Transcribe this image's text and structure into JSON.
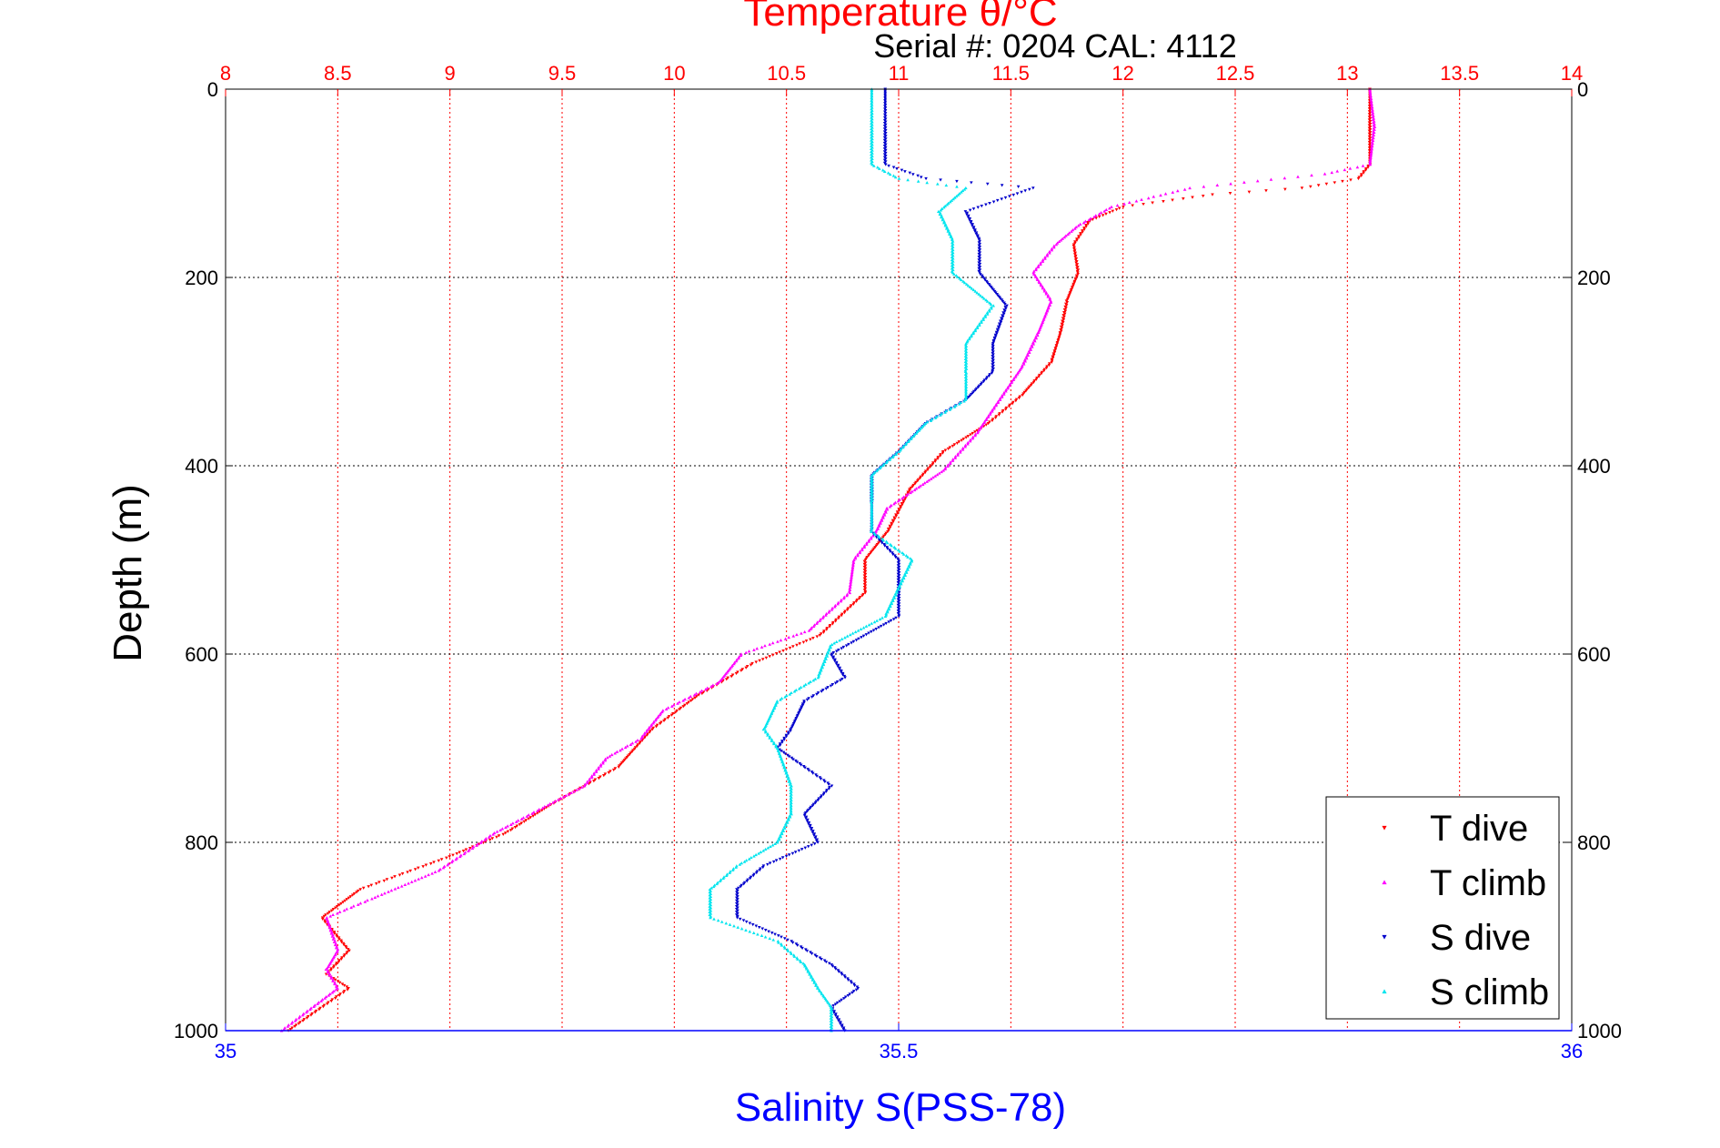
{
  "chart_data": {
    "type": "scatter",
    "title": "Temperature θ/°C",
    "subtitle": "Serial #: 0204  CAL: 4112",
    "ylabel": "Depth (m)",
    "xlabel_bottom": "Salinity S(PSS-78)",
    "ylim": [
      1000,
      0
    ],
    "y_ticks": [
      "0",
      "200",
      "400",
      "600",
      "800",
      "1000"
    ],
    "temperature_axis": {
      "range": [
        8,
        14
      ],
      "ticks": [
        "8",
        "8.5",
        "9",
        "9.5",
        "10",
        "10.5",
        "11",
        "11.5",
        "12",
        "12.5",
        "13",
        "13.5",
        "14"
      ]
    },
    "salinity_axis": {
      "range": [
        35,
        36
      ],
      "ticks": [
        "35",
        "35.5",
        "36"
      ]
    },
    "grid": true,
    "legend_position": "bottom-right",
    "colors": {
      "temperature_axis": "#ff0000",
      "salinity_axis": "#0000ff",
      "grid_temperature": "#ff0000",
      "grid_depth": "#000000"
    },
    "series": [
      {
        "name": "T dive",
        "axis": "temperature",
        "color": "#ff0000",
        "marker": "triangle-down",
        "points": [
          [
            13.1,
            0
          ],
          [
            13.1,
            40
          ],
          [
            13.1,
            80
          ],
          [
            13.05,
            95
          ],
          [
            12.8,
            105
          ],
          [
            12.4,
            112
          ],
          [
            12.0,
            125
          ],
          [
            11.85,
            140
          ],
          [
            11.78,
            165
          ],
          [
            11.8,
            195
          ],
          [
            11.75,
            225
          ],
          [
            11.72,
            260
          ],
          [
            11.68,
            290
          ],
          [
            11.55,
            325
          ],
          [
            11.4,
            355
          ],
          [
            11.2,
            385
          ],
          [
            11.05,
            425
          ],
          [
            10.95,
            470
          ],
          [
            10.85,
            500
          ],
          [
            10.85,
            535
          ],
          [
            10.65,
            580
          ],
          [
            10.35,
            610
          ],
          [
            10.1,
            645
          ],
          [
            9.9,
            680
          ],
          [
            9.75,
            720
          ],
          [
            9.45,
            760
          ],
          [
            9.25,
            790
          ],
          [
            9.0,
            815
          ],
          [
            8.6,
            850
          ],
          [
            8.43,
            880
          ],
          [
            8.55,
            915
          ],
          [
            8.45,
            940
          ],
          [
            8.55,
            955
          ],
          [
            8.28,
            1000
          ]
        ]
      },
      {
        "name": "T climb",
        "axis": "temperature",
        "color": "#ff00ff",
        "marker": "triangle-up",
        "points": [
          [
            13.1,
            0
          ],
          [
            13.12,
            40
          ],
          [
            13.1,
            80
          ],
          [
            12.9,
            90
          ],
          [
            12.3,
            105
          ],
          [
            11.95,
            125
          ],
          [
            11.8,
            145
          ],
          [
            11.7,
            165
          ],
          [
            11.6,
            195
          ],
          [
            11.68,
            225
          ],
          [
            11.62,
            260
          ],
          [
            11.55,
            295
          ],
          [
            11.45,
            330
          ],
          [
            11.35,
            365
          ],
          [
            11.2,
            405
          ],
          [
            10.95,
            445
          ],
          [
            10.9,
            470
          ],
          [
            10.8,
            500
          ],
          [
            10.78,
            535
          ],
          [
            10.6,
            575
          ],
          [
            10.3,
            600
          ],
          [
            10.2,
            630
          ],
          [
            9.95,
            660
          ],
          [
            9.85,
            690
          ],
          [
            9.7,
            710
          ],
          [
            9.6,
            740
          ],
          [
            9.4,
            765
          ],
          [
            9.2,
            790
          ],
          [
            8.95,
            830
          ],
          [
            8.65,
            860
          ],
          [
            8.45,
            880
          ],
          [
            8.5,
            915
          ],
          [
            8.45,
            935
          ],
          [
            8.5,
            955
          ],
          [
            8.25,
            1000
          ]
        ]
      },
      {
        "name": "S dive",
        "axis": "salinity",
        "color": "#0000cc",
        "marker": "triangle-down",
        "points": [
          [
            35.49,
            0
          ],
          [
            35.49,
            80
          ],
          [
            35.52,
            95
          ],
          [
            35.6,
            105
          ],
          [
            35.55,
            130
          ],
          [
            35.56,
            160
          ],
          [
            35.56,
            195
          ],
          [
            35.58,
            230
          ],
          [
            35.57,
            270
          ],
          [
            35.57,
            300
          ],
          [
            35.55,
            330
          ],
          [
            35.52,
            355
          ],
          [
            35.5,
            385
          ],
          [
            35.48,
            410
          ],
          [
            35.48,
            440
          ],
          [
            35.48,
            470
          ],
          [
            35.5,
            500
          ],
          [
            35.5,
            560
          ],
          [
            35.45,
            600
          ],
          [
            35.46,
            625
          ],
          [
            35.43,
            650
          ],
          [
            35.42,
            680
          ],
          [
            35.41,
            700
          ],
          [
            35.45,
            740
          ],
          [
            35.43,
            770
          ],
          [
            35.44,
            800
          ],
          [
            35.4,
            825
          ],
          [
            35.38,
            850
          ],
          [
            35.38,
            880
          ],
          [
            35.42,
            905
          ],
          [
            35.45,
            930
          ],
          [
            35.47,
            955
          ],
          [
            35.45,
            975
          ],
          [
            35.46,
            1000
          ]
        ]
      },
      {
        "name": "S climb",
        "axis": "salinity",
        "color": "#00e5ee",
        "marker": "triangle-up",
        "points": [
          [
            35.48,
            0
          ],
          [
            35.48,
            80
          ],
          [
            35.5,
            95
          ],
          [
            35.55,
            105
          ],
          [
            35.53,
            130
          ],
          [
            35.54,
            160
          ],
          [
            35.54,
            195
          ],
          [
            35.57,
            230
          ],
          [
            35.55,
            270
          ],
          [
            35.55,
            300
          ],
          [
            35.55,
            330
          ],
          [
            35.52,
            355
          ],
          [
            35.5,
            385
          ],
          [
            35.48,
            410
          ],
          [
            35.48,
            440
          ],
          [
            35.48,
            470
          ],
          [
            35.51,
            500
          ],
          [
            35.49,
            560
          ],
          [
            35.45,
            590
          ],
          [
            35.44,
            625
          ],
          [
            35.41,
            650
          ],
          [
            35.4,
            680
          ],
          [
            35.41,
            700
          ],
          [
            35.42,
            740
          ],
          [
            35.42,
            770
          ],
          [
            35.41,
            800
          ],
          [
            35.38,
            825
          ],
          [
            35.36,
            850
          ],
          [
            35.36,
            880
          ],
          [
            35.41,
            905
          ],
          [
            35.43,
            930
          ],
          [
            35.44,
            955
          ],
          [
            35.45,
            975
          ],
          [
            35.45,
            1000
          ]
        ]
      }
    ]
  }
}
